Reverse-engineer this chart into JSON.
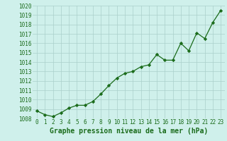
{
  "x": [
    0,
    1,
    2,
    3,
    4,
    5,
    6,
    7,
    8,
    9,
    10,
    11,
    12,
    13,
    14,
    15,
    16,
    17,
    18,
    19,
    20,
    21,
    22,
    23
  ],
  "y": [
    1008.8,
    1008.4,
    1008.2,
    1008.6,
    1009.1,
    1009.4,
    1009.4,
    1009.8,
    1010.6,
    1011.5,
    1012.3,
    1012.8,
    1013.0,
    1013.5,
    1013.7,
    1014.8,
    1014.2,
    1014.2,
    1016.0,
    1015.2,
    1017.1,
    1016.5,
    1018.2,
    1019.5
  ],
  "ylim": [
    1008,
    1020
  ],
  "yticks": [
    1008,
    1009,
    1010,
    1011,
    1012,
    1013,
    1014,
    1015,
    1016,
    1017,
    1018,
    1019,
    1020
  ],
  "xlim": [
    -0.5,
    23.5
  ],
  "xticks": [
    0,
    1,
    2,
    3,
    4,
    5,
    6,
    7,
    8,
    9,
    10,
    11,
    12,
    13,
    14,
    15,
    16,
    17,
    18,
    19,
    20,
    21,
    22,
    23
  ],
  "line_color": "#1a6b1a",
  "marker": "D",
  "marker_size": 2.2,
  "line_width": 0.9,
  "background_color": "#cff0eb",
  "grid_color": "#aacfca",
  "xlabel": "Graphe pression niveau de la mer (hPa)",
  "xlabel_color": "#1a6b1a",
  "tick_color": "#1a6b1a",
  "tick_fontsize": 5.5,
  "xlabel_fontsize": 7.0
}
